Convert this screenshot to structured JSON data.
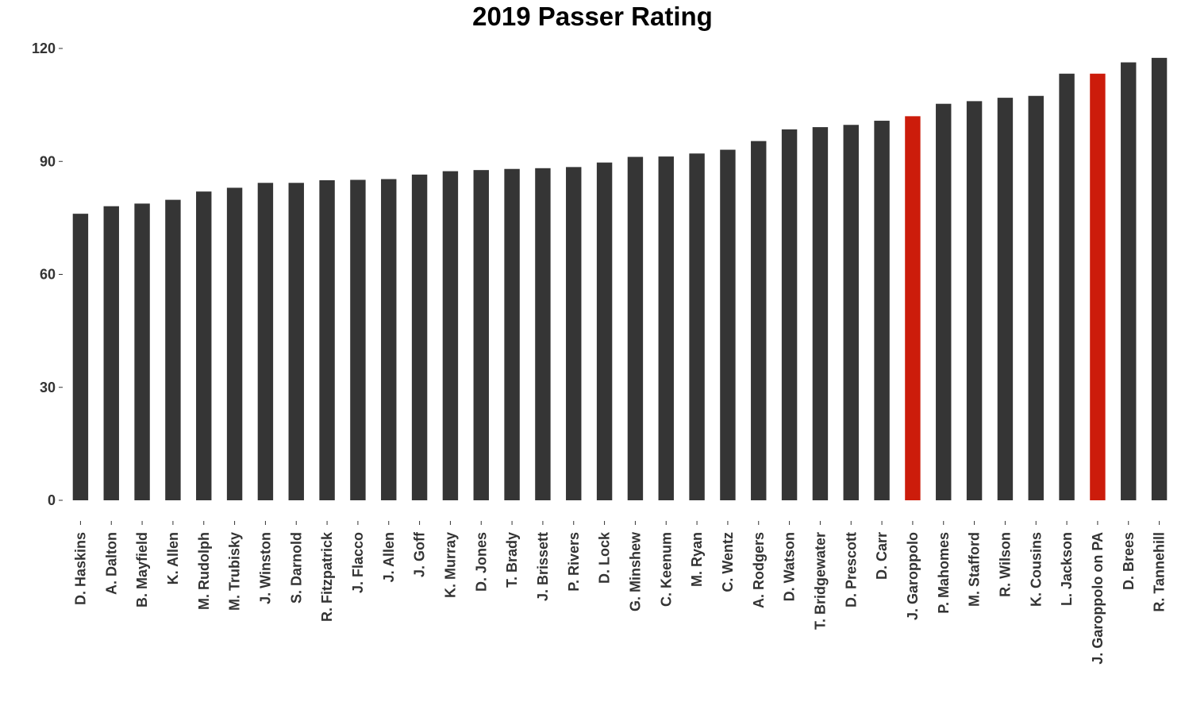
{
  "chart_data": {
    "type": "bar",
    "title": "2019 Passer Rating",
    "xlabel": "",
    "ylabel": "",
    "ylim": [
      0,
      120
    ],
    "yticks": [
      0,
      30,
      60,
      90,
      120
    ],
    "ytick_labels": [
      "0",
      "30",
      "60",
      "90",
      "120"
    ],
    "grid": false,
    "legend": "none",
    "colors": {
      "default": "#353535",
      "highlight": "#cc1c0b"
    },
    "categories": [
      "D. Haskins",
      "A. Dalton",
      "B. Mayfield",
      "K. Allen",
      "M. Rudolph",
      "M. Trubisky",
      "J. Winston",
      "S. Darnold",
      "R. Fitzpatrick",
      "J. Flacco",
      "J. Allen",
      "J. Goff",
      "K. Murray",
      "D. Jones",
      "T. Brady",
      "J. Brissett",
      "P. Rivers",
      "D. Lock",
      "G. Minshew",
      "C. Keenum",
      "M. Ryan",
      "C. Wentz",
      "A. Rodgers",
      "D. Watson",
      "T. Bridgewater",
      "D. Prescott",
      "D. Carr",
      "J. Garoppolo",
      "P. Mahomes",
      "M. Stafford",
      "R. Wilson",
      "K. Cousins",
      "L. Jackson",
      "J. Garoppolo on PA",
      "D. Brees",
      "R. Tannehill"
    ],
    "values": [
      76.1,
      78.1,
      78.8,
      79.8,
      82.0,
      83.0,
      84.3,
      84.3,
      85.0,
      85.1,
      85.3,
      86.5,
      87.4,
      87.7,
      88.0,
      88.2,
      88.5,
      89.7,
      91.2,
      91.3,
      92.1,
      93.1,
      95.4,
      98.5,
      99.1,
      99.7,
      100.8,
      102.0,
      105.3,
      106.0,
      106.9,
      107.4,
      113.3,
      113.3,
      116.3,
      117.5
    ],
    "highlight": [
      "J. Garoppolo",
      "J. Garoppolo on PA"
    ]
  }
}
